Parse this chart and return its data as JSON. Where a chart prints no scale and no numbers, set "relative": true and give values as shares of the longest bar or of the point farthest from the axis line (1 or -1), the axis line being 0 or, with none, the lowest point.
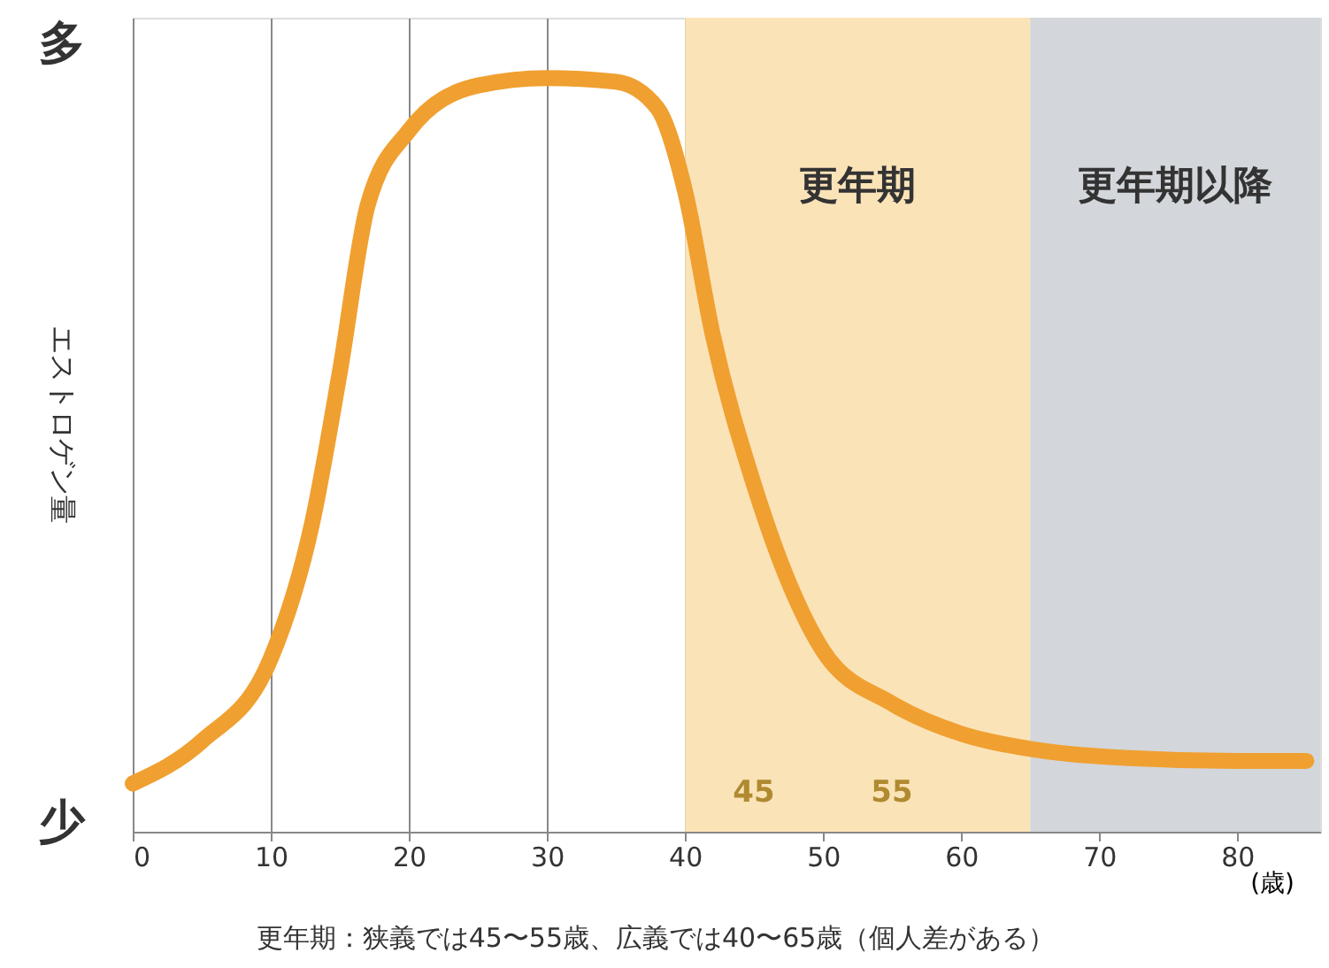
{
  "chart_data": {
    "type": "line",
    "relative": true,
    "ylabel": "エストロゲン量",
    "xlabel": "(歳)",
    "x": [
      0,
      5,
      10,
      13,
      15,
      17,
      20,
      25,
      30,
      35,
      38,
      40,
      42,
      45,
      48,
      50,
      55,
      60,
      65,
      70,
      80,
      85
    ],
    "series": [
      {
        "color": "#f0a030",
        "values": [
          0.064,
          0.12,
          0.23,
          0.41,
          0.61,
          0.83,
          0.93,
          0.99,
          1.0,
          0.995,
          0.96,
          0.85,
          0.66,
          0.46,
          0.31,
          0.24,
          0.17,
          0.13,
          0.11,
          0.1,
          0.094,
          0.094
        ]
      }
    ],
    "xlim": [
      0,
      86
    ],
    "xticks": [
      0,
      10,
      20,
      30,
      40,
      50,
      60,
      70,
      80
    ],
    "grid": "x",
    "bands": [
      {
        "axis": "x",
        "from": 40,
        "to": 65,
        "label": "更年期",
        "color": "#fbe3b8"
      },
      {
        "axis": "x",
        "from": 65,
        "to": 86,
        "label": "更年期以降",
        "color": "#d3d6da"
      }
    ],
    "annotations": [
      "45",
      "55",
      "多",
      "少",
      "更年期：狭義では45〜55歳、広義では40〜65歳（個人差がある）"
    ]
  }
}
